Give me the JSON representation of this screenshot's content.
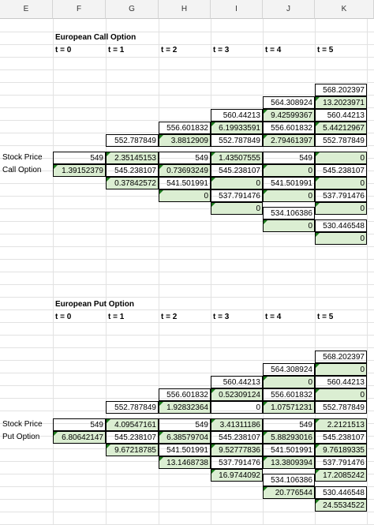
{
  "columns": [
    "E",
    "F",
    "G",
    "H",
    "I",
    "J",
    "K"
  ],
  "call_section": {
    "title": "European Call Option",
    "time_headers": [
      "t = 0",
      "t = 1",
      "t = 2",
      "t = 3",
      "t = 4",
      "t = 5"
    ],
    "row_labels": [
      "Stock Price",
      "Call Option"
    ],
    "cells": [
      [
        "568.202397",
        "13.2023971",
        "564.308924",
        "9.42599367",
        "560.44213",
        "560.44213",
        "6.19933591",
        "5.44212967",
        "556.601832",
        "556.601832",
        "552.787849",
        "552.787849"
      ],
      [
        "3.8812909",
        "2.79461397",
        "549",
        "549",
        "549",
        "2.35145153",
        "1.43507555",
        "0",
        "1.39152379",
        "545.238107",
        "0.73693249",
        "545.238107"
      ],
      [
        "545.238107",
        "0",
        "0",
        "0.37842572",
        "541.501991",
        "541.501991",
        "0",
        "0",
        "537.791476",
        "537.791476",
        "0",
        "0"
      ],
      [
        "534.106386",
        "0",
        "530.446548",
        "0"
      ]
    ]
  },
  "put_section": {
    "title": "European Put Option",
    "time_headers": [
      "t = 0",
      "t = 1",
      "t = 2",
      "t = 3",
      "t = 4",
      "t = 5"
    ],
    "row_labels": [
      "Stock Price",
      "Put Option"
    ],
    "cells": [
      [
        "568.202397",
        "0",
        "564.308924",
        "0",
        "560.44213",
        "560.44213",
        "0.52309124",
        "0",
        "556.601832",
        "556.601832",
        "552.787849",
        "552.787849"
      ],
      [
        "1.92832364",
        "1.07571231",
        "549",
        "549",
        "549",
        "4.09547161",
        "3.41311186",
        "2.2121513",
        "6.80642147",
        "545.238107",
        "6.38579704",
        "545.238107"
      ],
      [
        "545.238107",
        "5.88293016",
        "9.67218785",
        "9.52777836",
        "541.501991",
        "541.501991",
        "9.76189335",
        "13.1468738",
        "537.791476",
        "537.791476",
        "13.3809394",
        "16.9744092"
      ],
      [
        "534.106386",
        "17.2085242",
        "20.776544",
        "530.446548",
        "24.5534522"
      ]
    ]
  }
}
